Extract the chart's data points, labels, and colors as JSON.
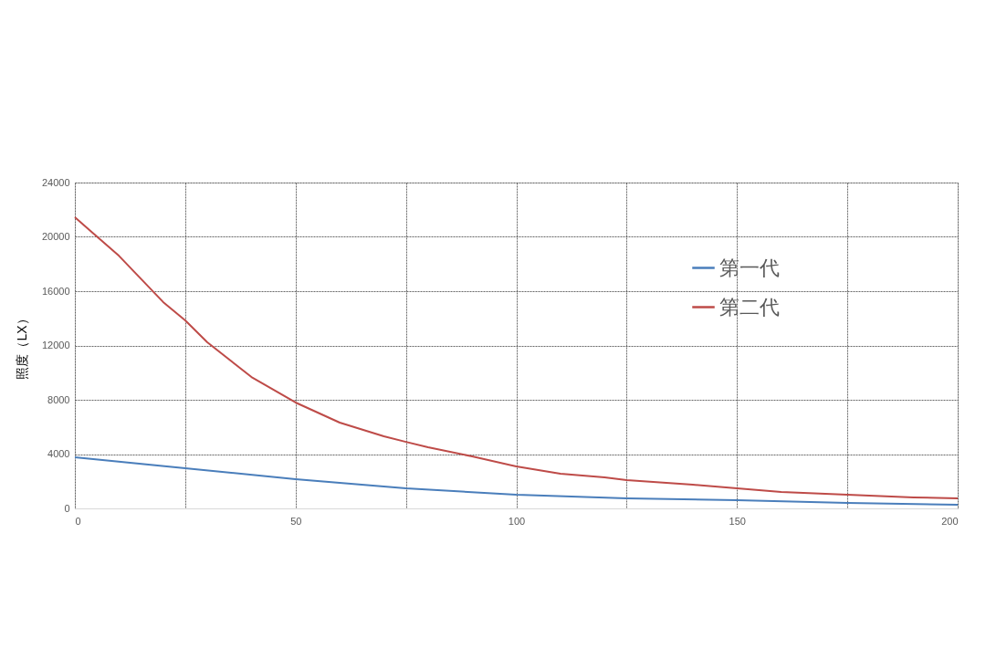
{
  "chart_data": {
    "type": "line",
    "ylabel": "照度（LX）",
    "xlim": [
      0,
      200
    ],
    "xticks": [
      0,
      {
        "value": 25,
        "label": null
      },
      50,
      {
        "value": 75,
        "label": null
      },
      100,
      {
        "value": 125,
        "label": null
      },
      150,
      {
        "value": 175,
        "label": null
      },
      200
    ],
    "ylim": [
      0,
      24000
    ],
    "yticks": [
      0,
      4000,
      8000,
      12000,
      16000,
      20000,
      24000
    ],
    "grid": true,
    "legend": "top right",
    "line_style": "solid",
    "marker": "none",
    "series": [
      {
        "name": "第一代",
        "color": "#4a7ebb",
        "x": [
          0,
          25,
          50,
          75,
          100,
          125,
          150,
          175,
          200
        ],
        "values": [
          3760,
          2960,
          2150,
          1480,
          1010,
          740,
          600,
          400,
          270
        ]
      },
      {
        "name": "第二代",
        "color": "#be4b48",
        "x": [
          0,
          10,
          20,
          25,
          30,
          40,
          50,
          60,
          70,
          75,
          80,
          90,
          100,
          110,
          120,
          125,
          140,
          150,
          160,
          175,
          190,
          200
        ],
        "values": [
          21440,
          18600,
          15200,
          13850,
          12230,
          9680,
          7800,
          6320,
          5310,
          4900,
          4500,
          3830,
          3090,
          2550,
          2290,
          2080,
          1750,
          1480,
          1210,
          1010,
          810,
          740
        ]
      }
    ]
  }
}
